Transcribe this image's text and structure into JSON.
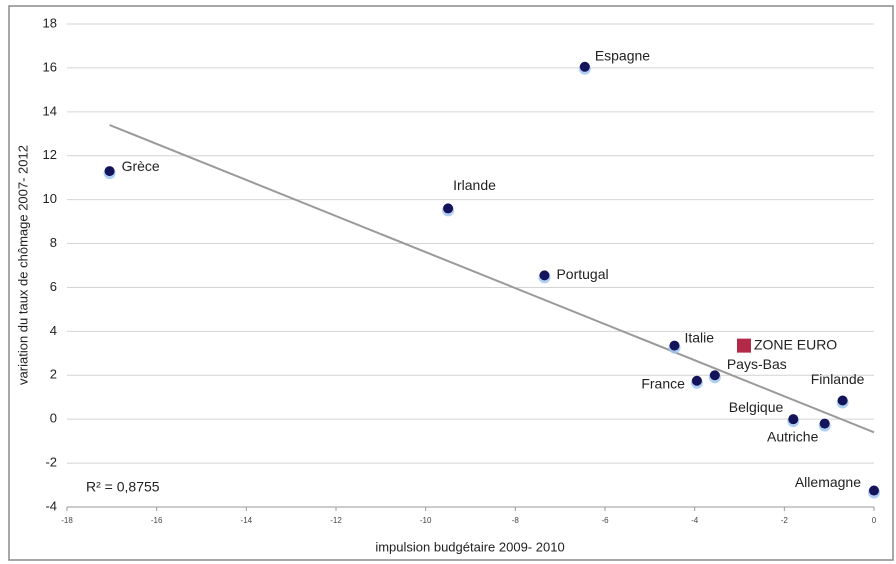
{
  "chart_data": {
    "type": "scatter",
    "x_label": "impulsion budgétaire 2009- 2010",
    "y_label": "variation du taux de chômage 2007- 2012",
    "annotation": "R² = 0,8755",
    "xlim": [
      -18,
      0
    ],
    "xticks": [
      -18,
      -16,
      -14,
      -12,
      -10,
      -8,
      -6,
      -4,
      -2,
      0
    ],
    "ylim": [
      -4,
      18
    ],
    "yticks": [
      -4,
      -2,
      0,
      2,
      4,
      6,
      8,
      10,
      12,
      14,
      16,
      18
    ],
    "grid": true,
    "marker_color": "#14145a",
    "points": [
      {
        "label": "Espagne",
        "x": -6.45,
        "y": 16.05
      },
      {
        "label": "Grèce",
        "x": -17.05,
        "y": 11.3
      },
      {
        "label": "Irlande",
        "x": -9.5,
        "y": 9.6
      },
      {
        "label": "Portugal",
        "x": -7.35,
        "y": 6.55
      },
      {
        "label": "Italie",
        "x": -4.45,
        "y": 3.35
      },
      {
        "label": "Pays-Bas",
        "x": -3.55,
        "y": 2.0
      },
      {
        "label": "France",
        "x": -3.95,
        "y": 1.75
      },
      {
        "label": "Finlande",
        "x": -0.7,
        "y": 0.85
      },
      {
        "label": "Belgique",
        "x": -1.8,
        "y": 0.0
      },
      {
        "label": "Autriche",
        "x": -1.1,
        "y": -0.2
      },
      {
        "label": "Allemagne",
        "x": 0.0,
        "y": -3.25
      }
    ],
    "highlight": {
      "label": "ZONE EURO",
      "x": -2.9,
      "y": 3.35,
      "color": "#b22a48"
    },
    "trendline": {
      "x": [
        -17.05,
        0
      ],
      "y": [
        13.4,
        -0.6
      ],
      "color": "#9a9a9a"
    }
  }
}
